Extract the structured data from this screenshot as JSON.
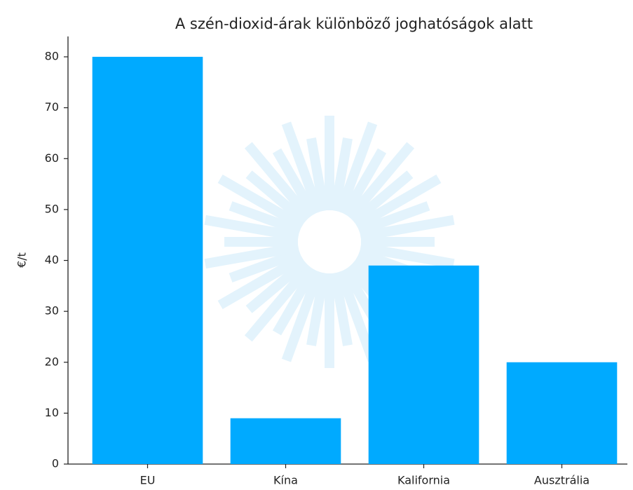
{
  "chart_data": {
    "type": "bar",
    "title": "A szén-dioxid-árak különböző joghatóságok alatt",
    "ylabel": "€/t",
    "categories": [
      "EU",
      "Kína",
      "Kalifornia",
      "Ausztrália"
    ],
    "values": [
      80,
      9,
      39,
      20
    ],
    "color": "#00aaff",
    "ylim": [
      0,
      84
    ],
    "yticks": [
      0,
      10,
      20,
      30,
      40,
      50,
      60,
      70,
      80
    ],
    "grid": false
  }
}
